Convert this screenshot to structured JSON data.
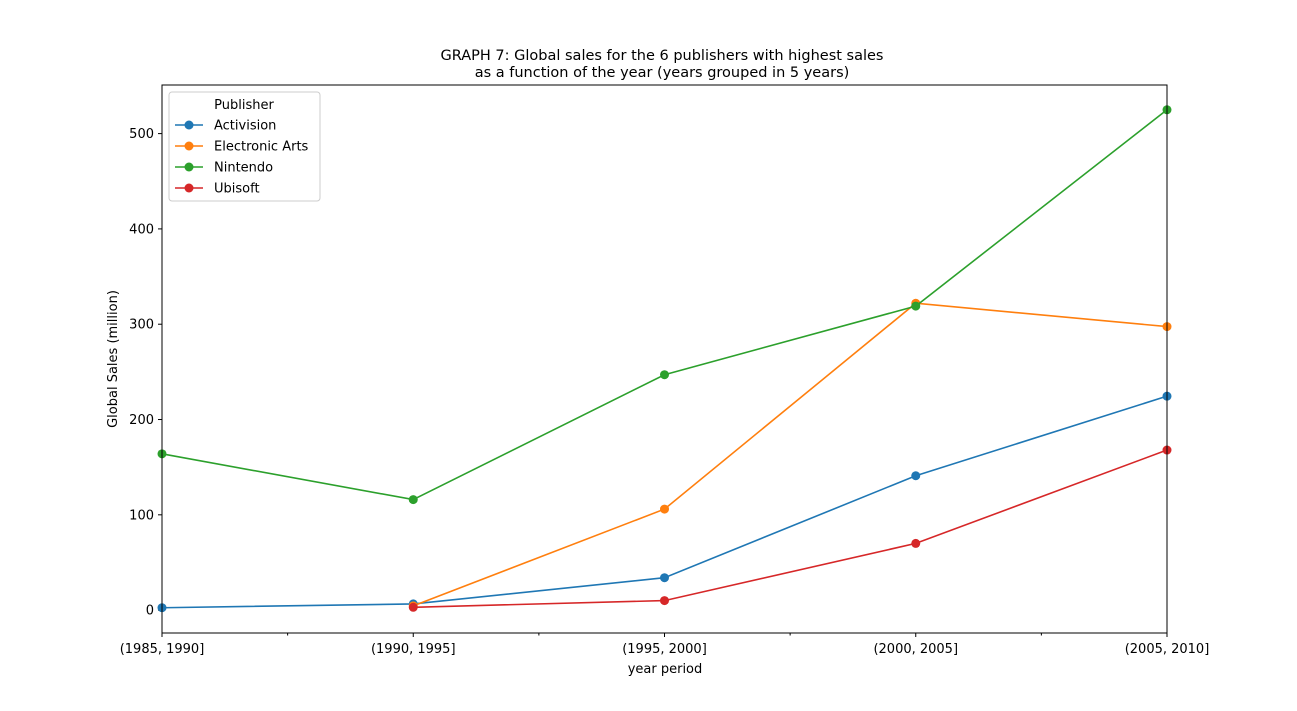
{
  "chart_data": {
    "type": "line",
    "title_lines": [
      "GRAPH 7: Global sales for the 6 publishers with highest sales",
      "as a function of the year (years grouped in 5 years)"
    ],
    "xlabel": "year period",
    "ylabel": "Global Sales (million)",
    "categories": [
      "(1985, 1990]",
      "(1990, 1995]",
      "(1995, 2000]",
      "(2000, 2005]",
      "(2005, 2010]"
    ],
    "ylim": [
      -24,
      551
    ],
    "yticks": [
      0,
      100,
      200,
      300,
      400,
      500
    ],
    "grid": false,
    "legend": {
      "title": "Publisher",
      "placement": "top-left"
    },
    "series": [
      {
        "name": "Activision",
        "color": "#1f77b4",
        "values": [
          2.5,
          6.5,
          34.0,
          141.0,
          224.5
        ]
      },
      {
        "name": "Electronic Arts",
        "color": "#ff7f0e",
        "values": [
          null,
          4.5,
          106.0,
          322.0,
          297.5
        ]
      },
      {
        "name": "Nintendo",
        "color": "#2ca02c",
        "values": [
          164.0,
          116.0,
          247.0,
          319.0,
          525.0
        ]
      },
      {
        "name": "Ubisoft",
        "color": "#d62728",
        "values": [
          null,
          3.0,
          10.0,
          70.0,
          168.0
        ]
      }
    ]
  }
}
